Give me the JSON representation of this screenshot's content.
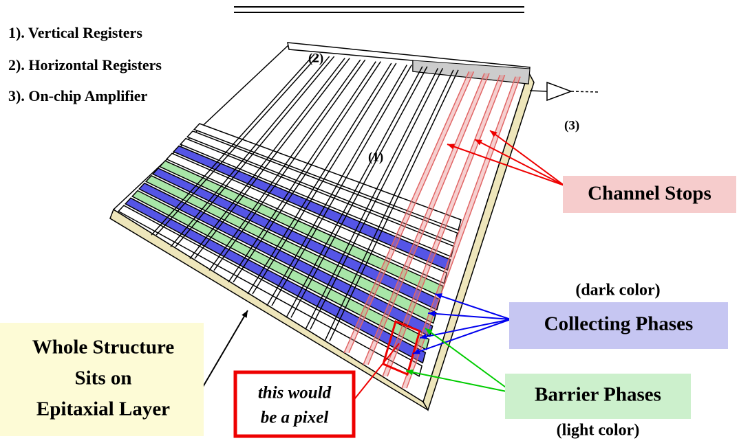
{
  "legend": [
    "1). Vertical Registers",
    "2). Horizontal Registers",
    "3). On-chip Amplifier"
  ],
  "labels": {
    "horizontal": "(2)",
    "vertical": "(1)",
    "amplifier": "(3)"
  },
  "channel_stops": "Channel Stops",
  "collecting": {
    "note": "(dark color)",
    "title": "Collecting Phases"
  },
  "barrier": {
    "title": "Barrier Phases",
    "note": "(light color)"
  },
  "epitaxial": [
    "Whole Structure",
    "Sits on",
    "Epitaxial Layer"
  ],
  "pixel": [
    "this would",
    "be a pixel"
  ]
}
